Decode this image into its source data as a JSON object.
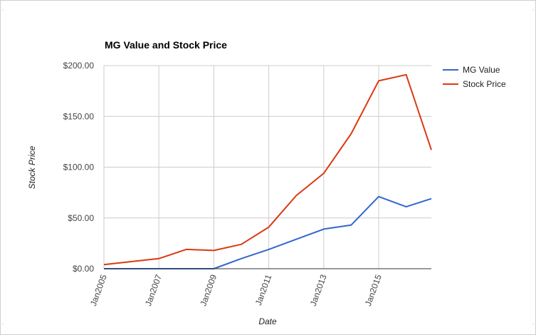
{
  "chart_data": {
    "type": "line",
    "title": "MG Value and Stock Price",
    "xlabel": "Date",
    "ylabel": "Stock Price",
    "x": [
      "2005-01",
      "2006-01",
      "2007-01",
      "2008-01",
      "2009-01",
      "2010-01",
      "2011-01",
      "2012-01",
      "2013-01",
      "2014-01",
      "2015-01",
      "2016-01",
      "2016-12"
    ],
    "x_ticks": [
      "Jan2005",
      "Jan2007",
      "Jan2009",
      "Jan2011",
      "Jan2013",
      "Jan2015"
    ],
    "y_ticks": [
      "$0.00",
      "$50.00",
      "$100.00",
      "$150.00",
      "$200.00"
    ],
    "ylim": [
      0,
      200
    ],
    "grid": true,
    "legend": "right",
    "series": [
      {
        "name": "MG Value",
        "color": "#3366cc",
        "values": [
          0,
          0,
          0,
          0,
          0,
          10,
          19,
          29,
          39,
          43,
          71,
          61,
          69
        ]
      },
      {
        "name": "Stock Price",
        "color": "#dc3912",
        "values": [
          4,
          7,
          10,
          19,
          18,
          24,
          41,
          72,
          94,
          133,
          185,
          191,
          117
        ]
      }
    ]
  }
}
